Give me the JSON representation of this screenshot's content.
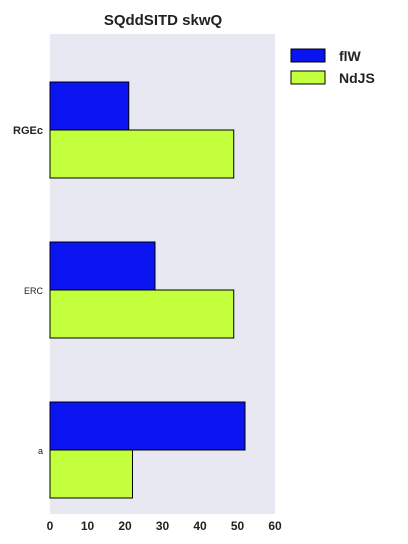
{
  "chart_data": {
    "type": "bar",
    "orientation": "horizontal",
    "title": "SQddSITD skwQ",
    "xlabel": "",
    "ylabel": "",
    "categories": [
      "RGEc",
      "ERC",
      "a"
    ],
    "category_bold": [
      true,
      false,
      false
    ],
    "series": [
      {
        "name": "flW",
        "color": "#0a14f0",
        "values": [
          21,
          28,
          52
        ]
      },
      {
        "name": "NdJS",
        "color": "#c3ff3c",
        "values": [
          49,
          49,
          22
        ]
      }
    ],
    "xlim": [
      0,
      60
    ],
    "xticks": [
      0,
      10,
      20,
      30,
      40,
      50,
      60
    ],
    "background": "#e8e8f2",
    "grid": false,
    "legend_position": "outside-top-right"
  }
}
